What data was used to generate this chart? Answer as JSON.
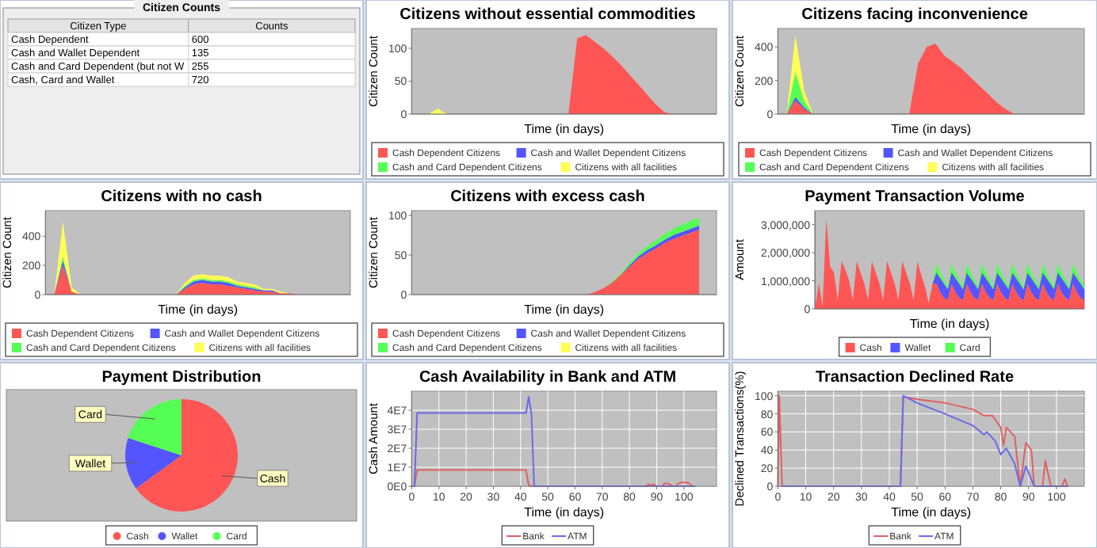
{
  "chart_data": [
    {
      "type": "other",
      "title": "Citizen Counts",
      "xlabel": "Citizen Type",
      "ylabel": "Counts",
      "data_labels": true,
      "categories": [
        "Cash Dependent",
        "Cash and Wallet Dependent",
        "Cash and Card Dependent (but not W",
        "Cash, Card and Wallet"
      ],
      "values": [
        600,
        135,
        255,
        720
      ]
    },
    {
      "type": "area",
      "stacked": true,
      "title": "Citizens without essential commodities",
      "xlabel": "Time (in days)",
      "ylabel": "Citizen Count",
      "tick_labels": "y",
      "legend": "bottom",
      "ylim": [
        0,
        130
      ],
      "yticks": [
        0,
        50,
        100
      ],
      "categories": [
        null,
        null,
        null,
        null,
        null,
        null,
        null,
        null,
        null,
        null,
        null,
        null,
        null,
        null,
        null,
        null,
        null,
        null,
        null,
        null,
        null,
        null,
        null,
        null,
        null,
        null,
        null,
        null,
        null,
        null,
        null,
        null,
        null,
        null,
        null,
        null
      ],
      "series": [
        {
          "name": "Cash Dependent Citizens",
          "color": "#ff5555",
          "values": [
            0,
            0,
            0,
            0,
            0,
            0,
            0,
            0,
            0,
            0,
            0,
            0,
            0,
            0,
            0,
            0,
            0,
            0,
            0,
            115,
            120,
            110,
            100,
            88,
            75,
            60,
            45,
            30,
            15,
            3,
            0,
            0,
            0,
            0,
            0,
            0
          ]
        },
        {
          "name": "Cash and Wallet Dependent Citizens",
          "color": "#5555ff",
          "values": [
            null,
            null,
            null,
            null,
            null,
            null,
            null,
            null,
            null,
            null,
            null,
            null,
            null,
            null,
            null,
            null,
            null,
            null,
            null,
            null,
            null,
            null,
            null,
            null,
            null,
            null,
            null,
            null,
            null,
            null,
            null,
            null,
            null,
            null,
            null,
            null
          ]
        },
        {
          "name": "Cash and Card Dependent Citizens",
          "color": "#55ff55",
          "values": [
            null,
            null,
            null,
            null,
            null,
            null,
            null,
            null,
            null,
            null,
            null,
            null,
            null,
            null,
            null,
            null,
            null,
            null,
            null,
            null,
            null,
            null,
            null,
            null,
            null,
            null,
            null,
            null,
            null,
            null,
            null,
            null,
            null,
            null,
            null,
            null
          ]
        },
        {
          "name": "Citizens with all facilities",
          "color": "#ffff55",
          "values": [
            null,
            null,
            0,
            8,
            0,
            null,
            null,
            null,
            null,
            null,
            null,
            null,
            null,
            null,
            null,
            null,
            null,
            null,
            null,
            null,
            null,
            null,
            null,
            null,
            null,
            null,
            null,
            null,
            null,
            null,
            null,
            null,
            null,
            null,
            null,
            null
          ]
        }
      ]
    },
    {
      "type": "area",
      "stacked": true,
      "title": "Citizens facing inconvenience",
      "xlabel": "Time (in days)",
      "ylabel": "Citizen Count",
      "tick_labels": "y",
      "legend": "bottom",
      "ylim": [
        0,
        510
      ],
      "yticks": [
        0,
        200,
        400
      ],
      "categories": [
        null,
        null,
        null,
        null,
        null,
        null,
        null,
        null,
        null,
        null,
        null,
        null,
        null,
        null,
        null,
        null,
        null,
        null,
        null,
        null,
        null,
        null,
        null,
        null,
        null,
        null,
        null,
        null,
        null,
        null,
        null,
        null,
        null,
        null,
        null,
        null
      ],
      "series": [
        {
          "name": "Cash Dependent Citizens",
          "color": "#ff5555",
          "values": [
            0,
            0,
            80,
            30,
            0,
            0,
            0,
            0,
            0,
            0,
            0,
            0,
            0,
            0,
            0,
            0,
            300,
            400,
            420,
            350,
            310,
            270,
            220,
            170,
            120,
            70,
            30,
            0,
            0,
            0,
            0,
            0,
            0,
            0,
            0,
            0
          ]
        },
        {
          "name": "Cash and Wallet Dependent Citizens",
          "color": "#5555ff",
          "values": [
            null,
            0,
            20,
            10,
            0,
            null,
            null,
            null,
            null,
            null,
            null,
            null,
            null,
            null,
            null,
            null,
            null,
            null,
            null,
            null,
            null,
            null,
            null,
            null,
            null,
            null,
            null,
            null,
            null,
            null,
            null,
            null,
            null,
            null,
            null,
            null
          ]
        },
        {
          "name": "Cash and Card Dependent Citizens",
          "color": "#55ff55",
          "values": [
            null,
            0,
            150,
            40,
            0,
            null,
            null,
            null,
            null,
            null,
            null,
            null,
            null,
            null,
            null,
            null,
            null,
            null,
            null,
            null,
            null,
            null,
            null,
            null,
            null,
            null,
            null,
            null,
            null,
            null,
            null,
            null,
            null,
            null,
            null,
            null
          ]
        },
        {
          "name": "Citizens with all facilities",
          "color": "#ffff55",
          "values": [
            null,
            0,
            220,
            60,
            0,
            null,
            null,
            null,
            null,
            null,
            null,
            null,
            null,
            null,
            null,
            null,
            null,
            null,
            null,
            null,
            null,
            null,
            null,
            null,
            null,
            null,
            null,
            null,
            null,
            null,
            null,
            null,
            null,
            null,
            null,
            null
          ]
        }
      ]
    },
    {
      "type": "area",
      "stacked": true,
      "title": "Citizens with no cash",
      "xlabel": "Time (in days)",
      "ylabel": "Citizen Count",
      "tick_labels": "y",
      "legend": "bottom",
      "ylim": [
        0,
        575
      ],
      "yticks": [
        0,
        200,
        400
      ],
      "categories": [
        null,
        null,
        null,
        null,
        null,
        null,
        null,
        null,
        null,
        null,
        null,
        null,
        null,
        null,
        null,
        null,
        null,
        null,
        null,
        null,
        null,
        null,
        null,
        null,
        null,
        null,
        null,
        null,
        null,
        null,
        null,
        null,
        null,
        null,
        null,
        null
      ],
      "series": [
        {
          "name": "Cash Dependent Citizens",
          "color": "#ff5555",
          "values": [
            0,
            0,
            200,
            20,
            0,
            0,
            0,
            0,
            0,
            0,
            0,
            0,
            0,
            0,
            0,
            0,
            40,
            70,
            80,
            70,
            70,
            60,
            50,
            40,
            30,
            20,
            20,
            10,
            10,
            0,
            0,
            0,
            0,
            0,
            0,
            0
          ]
        },
        {
          "name": "Cash and Wallet Dependent Citizens",
          "color": "#5555ff",
          "values": [
            0,
            0,
            30,
            0,
            0,
            0,
            0,
            0,
            0,
            0,
            0,
            0,
            0,
            0,
            0,
            0,
            10,
            20,
            20,
            20,
            20,
            20,
            10,
            10,
            10,
            10,
            10,
            0,
            0,
            0,
            0,
            0,
            0,
            0,
            0,
            0
          ]
        },
        {
          "name": "Cash and Card Dependent Citizens",
          "color": "#55ff55",
          "values": [
            0,
            0,
            30,
            0,
            0,
            0,
            0,
            0,
            0,
            0,
            0,
            0,
            0,
            0,
            0,
            0,
            10,
            10,
            10,
            10,
            10,
            10,
            10,
            10,
            10,
            0,
            0,
            0,
            0,
            0,
            0,
            0,
            0,
            0,
            0,
            0
          ]
        },
        {
          "name": "Citizens with all facilities",
          "color": "#ffff55",
          "values": [
            0,
            0,
            240,
            30,
            0,
            0,
            0,
            0,
            0,
            0,
            0,
            0,
            0,
            0,
            0,
            0,
            20,
            30,
            30,
            30,
            30,
            30,
            20,
            20,
            20,
            10,
            10,
            10,
            0,
            0,
            0,
            0,
            0,
            0,
            0,
            0
          ]
        }
      ]
    },
    {
      "type": "area",
      "stacked": true,
      "title": "Citizens with excess cash",
      "xlabel": "Time (in days)",
      "ylabel": "Citizen Count",
      "tick_labels": "y",
      "legend": "bottom",
      "ylim": [
        0,
        106
      ],
      "yticks": [
        0,
        50,
        100
      ],
      "categories": [
        null,
        null,
        null,
        null,
        null,
        null,
        null,
        null,
        null,
        null,
        null,
        null,
        null,
        null,
        null,
        null,
        null,
        null,
        null,
        null,
        null,
        null,
        null,
        null,
        null,
        null,
        null,
        null,
        null,
        null,
        null,
        null,
        null,
        null,
        null,
        null
      ],
      "series": [
        {
          "name": "Cash Dependent Citizens",
          "color": "#ff5555",
          "values": [
            0,
            0,
            0,
            0,
            0,
            0,
            0,
            0,
            0,
            0,
            0,
            0,
            0,
            0,
            0,
            0,
            0,
            0,
            0,
            0,
            0,
            3,
            8,
            15,
            25,
            35,
            45,
            52,
            58,
            65,
            70,
            74,
            78,
            82,
            null,
            null
          ]
        },
        {
          "name": "Cash and Wallet Dependent Citizens",
          "color": "#5555ff",
          "values": [
            null,
            null,
            null,
            null,
            null,
            null,
            null,
            null,
            null,
            null,
            null,
            null,
            null,
            null,
            null,
            null,
            null,
            null,
            null,
            null,
            null,
            null,
            null,
            null,
            0,
            2,
            3,
            4,
            4,
            4,
            5,
            5,
            5,
            5,
            null,
            null
          ]
        },
        {
          "name": "Cash and Card Dependent Citizens",
          "color": "#55ff55",
          "values": [
            null,
            null,
            null,
            null,
            null,
            null,
            null,
            null,
            null,
            null,
            null,
            null,
            null,
            null,
            null,
            null,
            null,
            null,
            null,
            null,
            null,
            null,
            0,
            1,
            2,
            3,
            4,
            5,
            6,
            7,
            8,
            9,
            10,
            10,
            null,
            null
          ]
        },
        {
          "name": "Citizens with all facilities",
          "color": "#ffff55",
          "values": [
            null,
            null,
            null,
            null,
            null,
            null,
            null,
            null,
            null,
            null,
            null,
            null,
            null,
            null,
            null,
            null,
            null,
            null,
            null,
            null,
            null,
            null,
            null,
            null,
            null,
            null,
            null,
            null,
            null,
            null,
            null,
            null,
            null,
            null,
            null,
            null
          ]
        }
      ]
    },
    {
      "type": "area",
      "stacked": true,
      "title": "Payment Transaction Volume",
      "xlabel": "Time (in days)",
      "ylabel": "Amount",
      "tick_labels": "y",
      "legend": "bottom",
      "ylim": [
        0,
        3500000
      ],
      "yticks": [
        0,
        {
          "value": 1000000,
          "label": "1,000,000"
        },
        {
          "value": 2000000,
          "label": "2,000,000"
        },
        {
          "value": 3000000,
          "label": "3,000,000"
        }
      ],
      "categories": [
        null,
        null,
        null,
        null,
        null,
        null,
        null,
        null,
        null,
        null,
        null,
        null,
        null,
        null,
        null,
        null,
        null,
        null,
        null,
        null,
        null,
        null,
        null,
        null,
        null,
        null,
        null,
        null,
        null,
        null,
        null,
        null,
        null,
        null,
        null,
        null,
        null,
        null,
        null,
        null,
        null,
        null,
        null,
        null,
        null,
        null,
        null,
        null,
        null,
        null,
        null,
        null,
        null,
        null,
        null,
        null,
        null,
        null,
        null,
        null,
        null,
        null,
        null,
        null,
        null,
        null,
        null,
        null,
        null,
        null,
        null,
        null
      ],
      "series": [
        {
          "name": "Cash",
          "color": "#ff5555",
          "values": [
            0,
            900000,
            100000,
            3200000,
            1500000,
            1300000,
            300000,
            1700000,
            1400000,
            1000000,
            300000,
            1700000,
            1300000,
            900000,
            300000,
            1700000,
            1300000,
            900000,
            300000,
            1700000,
            1300000,
            900000,
            300000,
            1700000,
            1300000,
            900000,
            300000,
            1700000,
            1200000,
            800000,
            200000,
            900000,
            900000,
            600000,
            400000,
            300000,
            900000,
            600000,
            400000,
            300000,
            900000,
            600000,
            400000,
            300000,
            900000,
            600000,
            400000,
            300000,
            900000,
            600000,
            400000,
            300000,
            900000,
            600000,
            400000,
            300000,
            900000,
            600000,
            400000,
            300000,
            900000,
            600000,
            400000,
            300000,
            900000,
            600000,
            400000,
            300000,
            900000,
            600000,
            400000,
            300000
          ]
        },
        {
          "name": "Wallet",
          "color": "#5555ff",
          "values": [
            null,
            null,
            null,
            null,
            null,
            null,
            null,
            null,
            null,
            null,
            null,
            null,
            null,
            null,
            null,
            null,
            null,
            null,
            null,
            null,
            null,
            null,
            null,
            null,
            null,
            null,
            null,
            null,
            null,
            null,
            null,
            0,
            400000,
            500000,
            500000,
            400000,
            400000,
            500000,
            500000,
            400000,
            400000,
            500000,
            500000,
            400000,
            400000,
            500000,
            500000,
            400000,
            400000,
            500000,
            500000,
            400000,
            400000,
            500000,
            500000,
            400000,
            400000,
            500000,
            500000,
            400000,
            400000,
            500000,
            500000,
            400000,
            400000,
            500000,
            500000,
            400000,
            400000,
            500000,
            500000,
            400000
          ]
        },
        {
          "name": "Card",
          "color": "#55ff55",
          "values": [
            null,
            null,
            null,
            null,
            null,
            null,
            null,
            null,
            null,
            null,
            null,
            null,
            null,
            null,
            null,
            null,
            null,
            null,
            null,
            null,
            null,
            null,
            null,
            null,
            null,
            null,
            null,
            null,
            null,
            null,
            null,
            0,
            300000,
            200000,
            150000,
            100000,
            300000,
            200000,
            150000,
            100000,
            300000,
            200000,
            150000,
            100000,
            300000,
            200000,
            150000,
            100000,
            300000,
            200000,
            150000,
            100000,
            300000,
            200000,
            150000,
            100000,
            300000,
            200000,
            150000,
            100000,
            300000,
            200000,
            150000,
            100000,
            300000,
            200000,
            150000,
            100000,
            300000,
            200000,
            150000,
            100000
          ]
        }
      ]
    },
    {
      "type": "pie",
      "title": "Payment Distribution",
      "legend": "bottom",
      "categories": [
        "Cash",
        "Wallet",
        "Card"
      ],
      "values": [
        65,
        15,
        20
      ],
      "colors": [
        "#ff5555",
        "#5555ff",
        "#55ff55"
      ]
    },
    {
      "type": "line",
      "title": "Cash Availability in Bank and ATM",
      "xlabel": "Time (in days)",
      "ylabel": "Cash Amount",
      "grid": true,
      "legend": "bottom",
      "xlim": [
        0,
        112
      ],
      "xticks": [
        0,
        10,
        20,
        30,
        40,
        50,
        60,
        70,
        80,
        90,
        100
      ],
      "ylim": [
        0,
        50000000
      ],
      "yticks": [
        {
          "value": 0,
          "label": "0E0"
        },
        {
          "value": 10000000,
          "label": "1E7"
        },
        {
          "value": 20000000,
          "label": "2E7"
        },
        {
          "value": 30000000,
          "label": "3E7"
        },
        {
          "value": 40000000,
          "label": "4E7"
        }
      ],
      "series": [
        {
          "name": "Bank",
          "color": "#e06060",
          "x": [
            0,
            1,
            2,
            42,
            43,
            44,
            86,
            87,
            88,
            89,
            90,
            92,
            93,
            94,
            96,
            97,
            98,
            99,
            101,
            102,
            103,
            104
          ],
          "values": [
            0,
            0,
            8500000,
            8500000,
            500000,
            0,
            0,
            1000000,
            500000,
            1000000,
            0,
            0,
            1500000,
            1500000,
            0,
            0,
            1500000,
            2000000,
            2000000,
            1500000,
            0,
            0
          ]
        },
        {
          "name": "ATM",
          "color": "#6a6ae8",
          "x": [
            0,
            1,
            2,
            42,
            43,
            44,
            45,
            104
          ],
          "values": [
            0,
            0,
            38500000,
            38500000,
            47000000,
            38000000,
            0,
            0
          ]
        }
      ]
    },
    {
      "type": "line",
      "title": "Transaction Declined Rate",
      "xlabel": "Time (in days)",
      "ylabel": "Declined Transactions(%)",
      "grid": true,
      "legend": "bottom",
      "xlim": [
        0,
        110
      ],
      "xticks": [
        0,
        10,
        20,
        30,
        40,
        50,
        60,
        70,
        80,
        90,
        100
      ],
      "ylim": [
        0,
        105
      ],
      "yticks": [
        0,
        20,
        40,
        60,
        80,
        100
      ],
      "series": [
        {
          "name": "Bank",
          "color": "#e06060",
          "x": [
            0,
            0.5,
            1.5,
            44,
            45,
            50,
            60,
            70,
            74,
            77,
            80,
            81,
            82,
            85,
            87,
            89,
            91,
            92,
            95,
            96,
            98,
            102,
            103,
            104
          ],
          "values": [
            0,
            100,
            0,
            0,
            99,
            96,
            92,
            85,
            78,
            78,
            65,
            45,
            65,
            55,
            0,
            48,
            40,
            0,
            0,
            28,
            0,
            0,
            8,
            0
          ]
        },
        {
          "name": "ATM",
          "color": "#6a6ae8",
          "x": [
            1.5,
            44,
            45,
            50,
            60,
            70,
            74,
            75,
            78,
            80,
            82,
            85,
            87,
            89,
            90,
            92,
            104
          ],
          "values": [
            0,
            0,
            100,
            92,
            80,
            67,
            57,
            60,
            50,
            35,
            42,
            25,
            0,
            22,
            15,
            0,
            0
          ]
        }
      ]
    }
  ]
}
